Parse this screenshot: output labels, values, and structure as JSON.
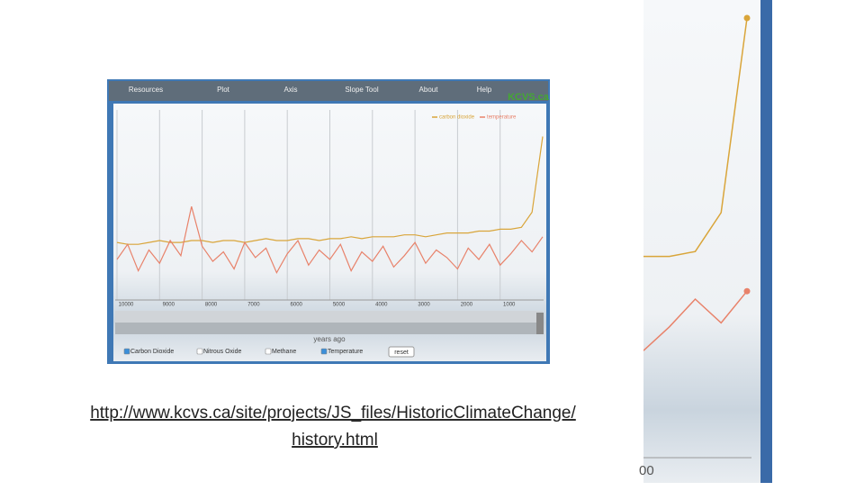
{
  "menu": [
    "Resources",
    "Plot",
    "Axis",
    "Slope Tool",
    "About",
    "Help"
  ],
  "brand": "KCVS.ca",
  "chart_data": {
    "type": "line",
    "x": [
      10000,
      9750,
      9500,
      9250,
      9000,
      8750,
      8500,
      8250,
      8000,
      7750,
      7500,
      7250,
      7000,
      6750,
      6500,
      6250,
      6000,
      5750,
      5500,
      5250,
      5000,
      4750,
      4500,
      4250,
      4000,
      3750,
      3500,
      3250,
      3000,
      2750,
      2500,
      2250,
      2000,
      1750,
      1500,
      1250,
      1000,
      750,
      500,
      250,
      0
    ],
    "xlim": [
      10000,
      0
    ],
    "xticks": [
      10000,
      9000,
      8000,
      7000,
      6000,
      5000,
      4000,
      3000,
      2000,
      1000
    ],
    "xlabel": "years ago",
    "ylim": [
      0,
      100
    ],
    "legend_position": "top-right",
    "series": [
      {
        "name": "carbon dioxide",
        "color": "#d9a53a",
        "values": [
          29,
          28,
          28,
          29,
          30,
          29,
          29,
          30,
          30,
          29,
          30,
          30,
          29,
          30,
          31,
          30,
          30,
          31,
          31,
          30,
          31,
          31,
          32,
          31,
          32,
          32,
          32,
          33,
          33,
          32,
          33,
          34,
          34,
          34,
          35,
          35,
          36,
          36,
          37,
          45,
          85
        ]
      },
      {
        "name": "temperature",
        "color": "#e8826a",
        "values": [
          20,
          28,
          14,
          25,
          18,
          30,
          22,
          48,
          27,
          19,
          24,
          15,
          29,
          21,
          26,
          13,
          23,
          30,
          17,
          25,
          20,
          28,
          14,
          24,
          19,
          27,
          16,
          22,
          29,
          18,
          25,
          21,
          15,
          26,
          20,
          28,
          17,
          23,
          30,
          24,
          32
        ]
      }
    ]
  },
  "checkboxes": [
    {
      "label": "Carbon Dioxide",
      "checked": true
    },
    {
      "label": "Nitrous Oxide",
      "checked": false
    },
    {
      "label": "Methane",
      "checked": false
    },
    {
      "label": "Temperature",
      "checked": true
    }
  ],
  "reset": "reset",
  "zoom": {
    "tick": "00"
  },
  "link": [
    "http://www.kcvs.ca/site/projects/JS_files/HistoricClimateChange/",
    "history.html"
  ]
}
